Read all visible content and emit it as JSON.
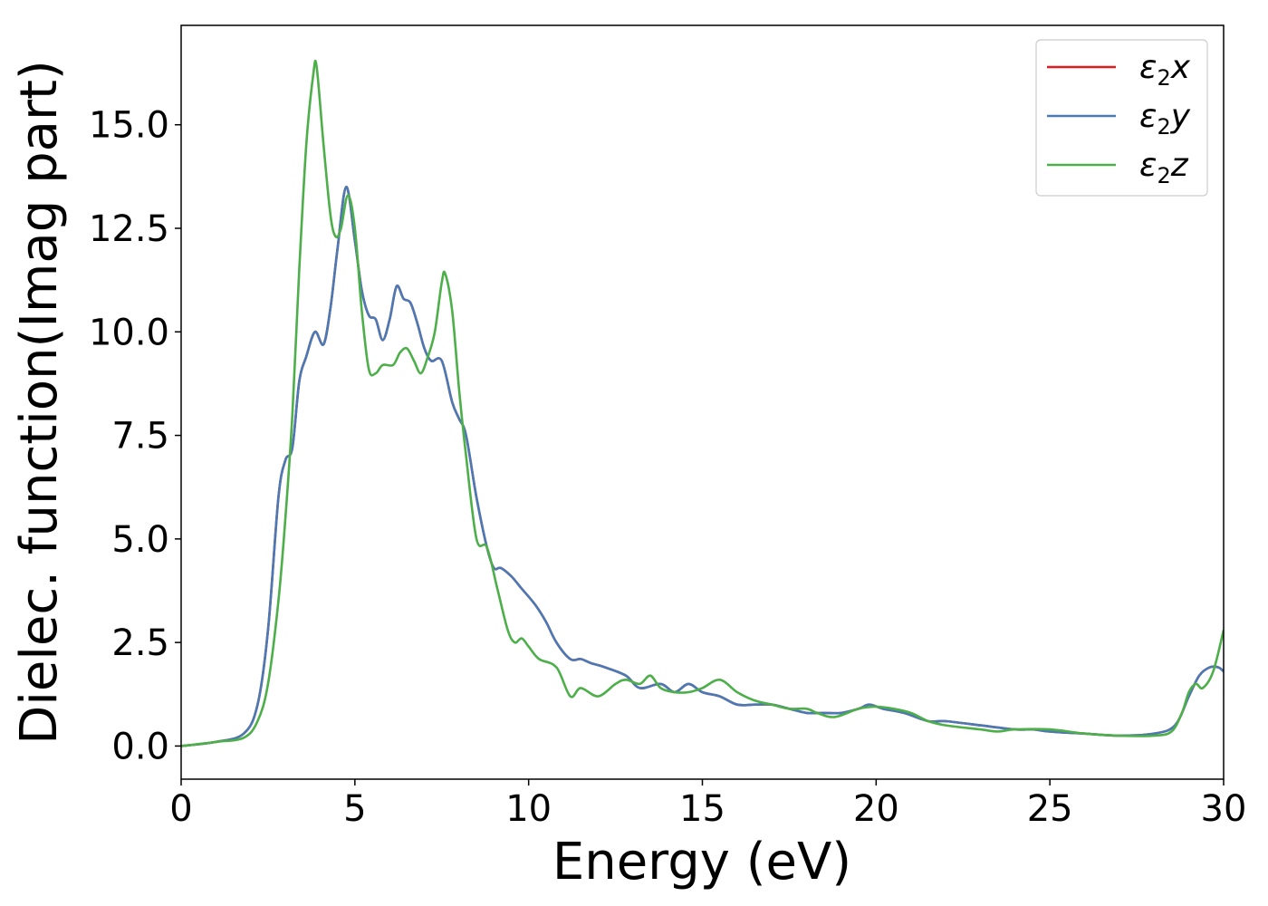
{
  "chart_data": {
    "type": "line",
    "title": "",
    "xlabel": "Energy (eV)",
    "ylabel": "Dielec. function(Imag part)",
    "xlim": [
      0,
      30
    ],
    "ylim": [
      -0.8,
      17.4
    ],
    "xticks": [
      0,
      5,
      10,
      15,
      20,
      25,
      30
    ],
    "xtick_labels": [
      "0",
      "5",
      "10",
      "15",
      "20",
      "25",
      "30"
    ],
    "yticks": [
      0.0,
      2.5,
      5.0,
      7.5,
      10.0,
      12.5,
      15.0
    ],
    "ytick_labels": [
      "0.0",
      "2.5",
      "5.0",
      "7.5",
      "10.0",
      "12.5",
      "15.0"
    ],
    "grid": false,
    "legend_position": "top-right",
    "series": [
      {
        "name": "ε₂x",
        "sub_base": "ε",
        "sub": "2",
        "axis": "x",
        "color": "#e41a1c",
        "points": [
          [
            0,
            0
          ],
          [
            1,
            0.1
          ],
          [
            1.8,
            0.3
          ],
          [
            2.2,
            1.0
          ],
          [
            2.5,
            2.8
          ],
          [
            2.8,
            6.0
          ],
          [
            3.0,
            6.9
          ],
          [
            3.2,
            7.2
          ],
          [
            3.4,
            8.8
          ],
          [
            3.6,
            9.4
          ],
          [
            3.85,
            10.0
          ],
          [
            4.1,
            9.7
          ],
          [
            4.3,
            10.6
          ],
          [
            4.5,
            12.0
          ],
          [
            4.75,
            13.5
          ],
          [
            5.0,
            12.2
          ],
          [
            5.2,
            11.0
          ],
          [
            5.4,
            10.4
          ],
          [
            5.6,
            10.3
          ],
          [
            5.8,
            9.8
          ],
          [
            6.0,
            10.3
          ],
          [
            6.2,
            11.1
          ],
          [
            6.4,
            10.8
          ],
          [
            6.6,
            10.7
          ],
          [
            6.8,
            10.2
          ],
          [
            7.0,
            9.6
          ],
          [
            7.2,
            9.3
          ],
          [
            7.5,
            9.3
          ],
          [
            7.8,
            8.3
          ],
          [
            8.0,
            7.9
          ],
          [
            8.2,
            7.5
          ],
          [
            8.5,
            6.0
          ],
          [
            8.8,
            4.8
          ],
          [
            9.0,
            4.3
          ],
          [
            9.2,
            4.3
          ],
          [
            9.5,
            4.1
          ],
          [
            9.8,
            3.8
          ],
          [
            10.2,
            3.4
          ],
          [
            10.5,
            3.0
          ],
          [
            10.8,
            2.5
          ],
          [
            11.2,
            2.1
          ],
          [
            11.5,
            2.1
          ],
          [
            11.8,
            2.0
          ],
          [
            12.2,
            1.9
          ],
          [
            12.8,
            1.7
          ],
          [
            13.2,
            1.4
          ],
          [
            13.8,
            1.5
          ],
          [
            14.2,
            1.3
          ],
          [
            14.6,
            1.5
          ],
          [
            15.0,
            1.3
          ],
          [
            15.5,
            1.2
          ],
          [
            16.0,
            1.0
          ],
          [
            16.5,
            1.0
          ],
          [
            17.0,
            1.0
          ],
          [
            17.5,
            0.9
          ],
          [
            18.0,
            0.8
          ],
          [
            18.5,
            0.8
          ],
          [
            19.0,
            0.8
          ],
          [
            19.5,
            0.9
          ],
          [
            19.8,
            1.0
          ],
          [
            20.2,
            0.9
          ],
          [
            20.8,
            0.8
          ],
          [
            21.5,
            0.6
          ],
          [
            22.0,
            0.6
          ],
          [
            23.0,
            0.5
          ],
          [
            24.0,
            0.4
          ],
          [
            24.5,
            0.4
          ],
          [
            25.0,
            0.35
          ],
          [
            26.0,
            0.3
          ],
          [
            27.0,
            0.25
          ],
          [
            28.0,
            0.3
          ],
          [
            28.6,
            0.5
          ],
          [
            29.0,
            1.2
          ],
          [
            29.3,
            1.7
          ],
          [
            29.6,
            1.9
          ],
          [
            29.85,
            1.9
          ],
          [
            30.0,
            1.8
          ]
        ]
      },
      {
        "name": "ε₂y",
        "sub_base": "ε",
        "sub": "2",
        "axis": "y",
        "color": "#4a7ab5",
        "points": [
          [
            0,
            0
          ],
          [
            1,
            0.1
          ],
          [
            1.8,
            0.3
          ],
          [
            2.2,
            1.0
          ],
          [
            2.5,
            2.8
          ],
          [
            2.8,
            6.0
          ],
          [
            3.0,
            6.9
          ],
          [
            3.2,
            7.2
          ],
          [
            3.4,
            8.8
          ],
          [
            3.6,
            9.4
          ],
          [
            3.85,
            10.0
          ],
          [
            4.1,
            9.7
          ],
          [
            4.3,
            10.6
          ],
          [
            4.5,
            12.0
          ],
          [
            4.75,
            13.5
          ],
          [
            5.0,
            12.2
          ],
          [
            5.2,
            11.0
          ],
          [
            5.4,
            10.4
          ],
          [
            5.6,
            10.3
          ],
          [
            5.8,
            9.8
          ],
          [
            6.0,
            10.3
          ],
          [
            6.2,
            11.1
          ],
          [
            6.4,
            10.8
          ],
          [
            6.6,
            10.7
          ],
          [
            6.8,
            10.2
          ],
          [
            7.0,
            9.6
          ],
          [
            7.2,
            9.3
          ],
          [
            7.5,
            9.3
          ],
          [
            7.8,
            8.3
          ],
          [
            8.0,
            7.9
          ],
          [
            8.2,
            7.5
          ],
          [
            8.5,
            6.0
          ],
          [
            8.8,
            4.8
          ],
          [
            9.0,
            4.3
          ],
          [
            9.2,
            4.3
          ],
          [
            9.5,
            4.1
          ],
          [
            9.8,
            3.8
          ],
          [
            10.2,
            3.4
          ],
          [
            10.5,
            3.0
          ],
          [
            10.8,
            2.5
          ],
          [
            11.2,
            2.1
          ],
          [
            11.5,
            2.1
          ],
          [
            11.8,
            2.0
          ],
          [
            12.2,
            1.9
          ],
          [
            12.8,
            1.7
          ],
          [
            13.2,
            1.4
          ],
          [
            13.8,
            1.5
          ],
          [
            14.2,
            1.3
          ],
          [
            14.6,
            1.5
          ],
          [
            15.0,
            1.3
          ],
          [
            15.5,
            1.2
          ],
          [
            16.0,
            1.0
          ],
          [
            16.5,
            1.0
          ],
          [
            17.0,
            1.0
          ],
          [
            17.5,
            0.9
          ],
          [
            18.0,
            0.8
          ],
          [
            18.5,
            0.8
          ],
          [
            19.0,
            0.8
          ],
          [
            19.5,
            0.9
          ],
          [
            19.8,
            1.0
          ],
          [
            20.2,
            0.9
          ],
          [
            20.8,
            0.8
          ],
          [
            21.5,
            0.6
          ],
          [
            22.0,
            0.6
          ],
          [
            23.0,
            0.5
          ],
          [
            24.0,
            0.4
          ],
          [
            24.5,
            0.4
          ],
          [
            25.0,
            0.35
          ],
          [
            26.0,
            0.3
          ],
          [
            27.0,
            0.25
          ],
          [
            28.0,
            0.3
          ],
          [
            28.6,
            0.5
          ],
          [
            29.0,
            1.2
          ],
          [
            29.3,
            1.7
          ],
          [
            29.6,
            1.9
          ],
          [
            29.85,
            1.9
          ],
          [
            30.0,
            1.8
          ]
        ]
      },
      {
        "name": "ε₂z",
        "sub_base": "ε",
        "sub": "2",
        "axis": "z",
        "color": "#4daf4a",
        "points": [
          [
            0,
            0
          ],
          [
            1,
            0.1
          ],
          [
            1.8,
            0.2
          ],
          [
            2.2,
            0.6
          ],
          [
            2.5,
            1.5
          ],
          [
            2.8,
            3.5
          ],
          [
            3.0,
            5.5
          ],
          [
            3.2,
            8.0
          ],
          [
            3.4,
            11.5
          ],
          [
            3.6,
            14.5
          ],
          [
            3.8,
            16.2
          ],
          [
            3.9,
            16.4
          ],
          [
            4.1,
            14.5
          ],
          [
            4.3,
            12.8
          ],
          [
            4.45,
            12.3
          ],
          [
            4.6,
            12.5
          ],
          [
            4.8,
            13.3
          ],
          [
            5.0,
            12.5
          ],
          [
            5.2,
            10.5
          ],
          [
            5.4,
            9.1
          ],
          [
            5.6,
            9.0
          ],
          [
            5.8,
            9.2
          ],
          [
            6.1,
            9.2
          ],
          [
            6.3,
            9.5
          ],
          [
            6.5,
            9.6
          ],
          [
            6.7,
            9.3
          ],
          [
            6.9,
            9.0
          ],
          [
            7.1,
            9.4
          ],
          [
            7.3,
            10.0
          ],
          [
            7.5,
            11.2
          ],
          [
            7.6,
            11.4
          ],
          [
            7.8,
            10.5
          ],
          [
            8.0,
            8.6
          ],
          [
            8.2,
            7.0
          ],
          [
            8.5,
            5.0
          ],
          [
            8.8,
            4.8
          ],
          [
            9.1,
            3.8
          ],
          [
            9.4,
            2.8
          ],
          [
            9.6,
            2.5
          ],
          [
            9.8,
            2.6
          ],
          [
            10.0,
            2.4
          ],
          [
            10.3,
            2.1
          ],
          [
            10.8,
            1.9
          ],
          [
            11.2,
            1.2
          ],
          [
            11.5,
            1.4
          ],
          [
            12.0,
            1.2
          ],
          [
            12.5,
            1.5
          ],
          [
            12.8,
            1.6
          ],
          [
            13.2,
            1.5
          ],
          [
            13.5,
            1.7
          ],
          [
            13.8,
            1.4
          ],
          [
            14.2,
            1.3
          ],
          [
            14.6,
            1.3
          ],
          [
            15.0,
            1.4
          ],
          [
            15.5,
            1.6
          ],
          [
            16.0,
            1.3
          ],
          [
            16.5,
            1.1
          ],
          [
            17.0,
            1.0
          ],
          [
            17.5,
            0.9
          ],
          [
            18.0,
            0.9
          ],
          [
            18.3,
            0.8
          ],
          [
            18.8,
            0.7
          ],
          [
            19.5,
            0.9
          ],
          [
            20.0,
            0.95
          ],
          [
            20.5,
            0.9
          ],
          [
            21.0,
            0.8
          ],
          [
            21.5,
            0.6
          ],
          [
            22.0,
            0.5
          ],
          [
            23.0,
            0.4
          ],
          [
            23.5,
            0.35
          ],
          [
            24.0,
            0.4
          ],
          [
            25.0,
            0.4
          ],
          [
            26.0,
            0.3
          ],
          [
            27.0,
            0.25
          ],
          [
            28.0,
            0.25
          ],
          [
            28.5,
            0.35
          ],
          [
            28.8,
            0.8
          ],
          [
            29.0,
            1.3
          ],
          [
            29.2,
            1.5
          ],
          [
            29.4,
            1.4
          ],
          [
            29.7,
            1.8
          ],
          [
            30.0,
            2.8
          ]
        ]
      }
    ]
  }
}
